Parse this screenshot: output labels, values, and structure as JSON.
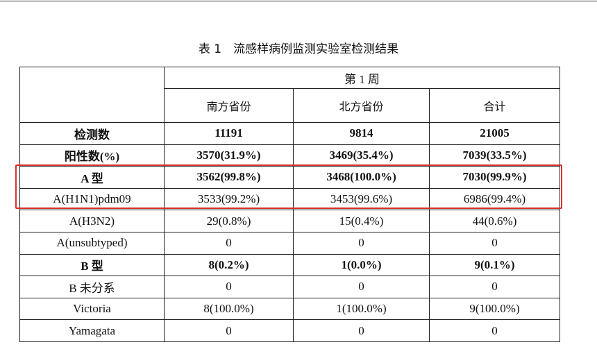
{
  "header": {
    "title": "表 1　流感样病例监测实验室检测结果"
  },
  "table": {
    "week": "第 1 周",
    "columns": [
      "南方省份",
      "北方省份",
      "合计"
    ],
    "rows": [
      [
        "检测数",
        "11191",
        "9814",
        "21005"
      ],
      [
        "阳性数(%)",
        "3570(31.9%)",
        "3469(35.4%)",
        "7039(33.5%)"
      ],
      [
        "A 型",
        "3562(99.8%)",
        "3468(100.0%)",
        "7030(99.9%)"
      ],
      [
        "A(H1N1)pdm09",
        "3533(99.2%)",
        "3453(99.6%)",
        "6986(99.4%)"
      ],
      [
        "A(H3N2)",
        "29(0.8%)",
        "15(0.4%)",
        "44(0.6%)"
      ],
      [
        "A(unsubtyped)",
        "0",
        "0",
        "0"
      ],
      [
        "B 型",
        "8(0.2%)",
        "1(0.0%)",
        "9(0.1%)"
      ],
      [
        "B 未分系",
        "0",
        "0",
        "0"
      ],
      [
        "Victoria",
        "8(100.0%)",
        "1(100.0%)",
        "9(100.0%)"
      ],
      [
        "Yamagata",
        "0",
        "0",
        "0"
      ]
    ]
  }
}
